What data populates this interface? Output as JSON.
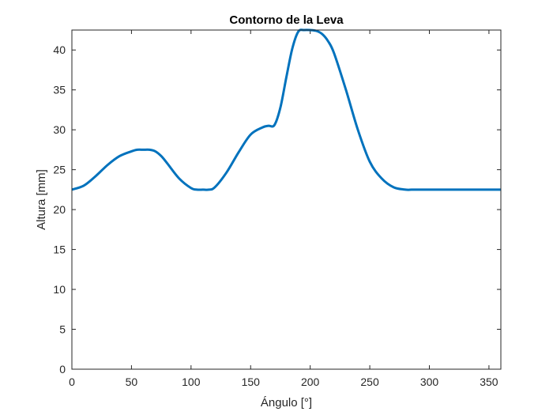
{
  "chart_data": {
    "type": "line",
    "title": "Contorno de la Leva",
    "xlabel": "Ángulo [°]",
    "ylabel": "Altura [mm]",
    "xlim": [
      0,
      360
    ],
    "ylim": [
      0,
      42.5
    ],
    "xticks": [
      0,
      50,
      100,
      150,
      200,
      250,
      300,
      350
    ],
    "yticks": [
      0,
      5,
      10,
      15,
      20,
      25,
      30,
      35,
      40
    ],
    "grid": false,
    "line_color": "#0072BD",
    "series": [
      {
        "x": [
          0,
          10,
          20,
          30,
          40,
          50,
          55,
          60,
          65,
          70,
          75,
          80,
          90,
          100,
          105,
          110,
          115,
          120,
          130,
          140,
          150,
          160,
          165,
          170,
          175,
          180,
          185,
          190,
          195,
          200,
          205,
          210,
          215,
          220,
          230,
          240,
          250,
          260,
          270,
          280,
          285,
          290,
          300,
          320,
          340,
          360
        ],
        "y": [
          22.5,
          23.0,
          24.2,
          25.6,
          26.7,
          27.3,
          27.5,
          27.5,
          27.5,
          27.3,
          26.7,
          25.8,
          23.9,
          22.7,
          22.5,
          22.5,
          22.5,
          22.8,
          24.7,
          27.2,
          29.4,
          30.3,
          30.5,
          30.6,
          32.8,
          36.6,
          40.2,
          42.3,
          42.5,
          42.5,
          42.4,
          42.0,
          41.1,
          39.6,
          35.0,
          30.0,
          26.0,
          23.9,
          22.8,
          22.5,
          22.5,
          22.5,
          22.5,
          22.5,
          22.5,
          22.5
        ]
      }
    ]
  }
}
